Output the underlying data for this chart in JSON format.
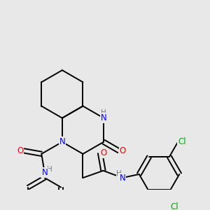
{
  "background_color": "#e8e8e8",
  "bond_color": "#000000",
  "atom_colors": {
    "N": "#0000ff",
    "O": "#ff0000",
    "Cl": "#00aa00",
    "C": "#000000",
    "H": "#7a7a7a"
  }
}
